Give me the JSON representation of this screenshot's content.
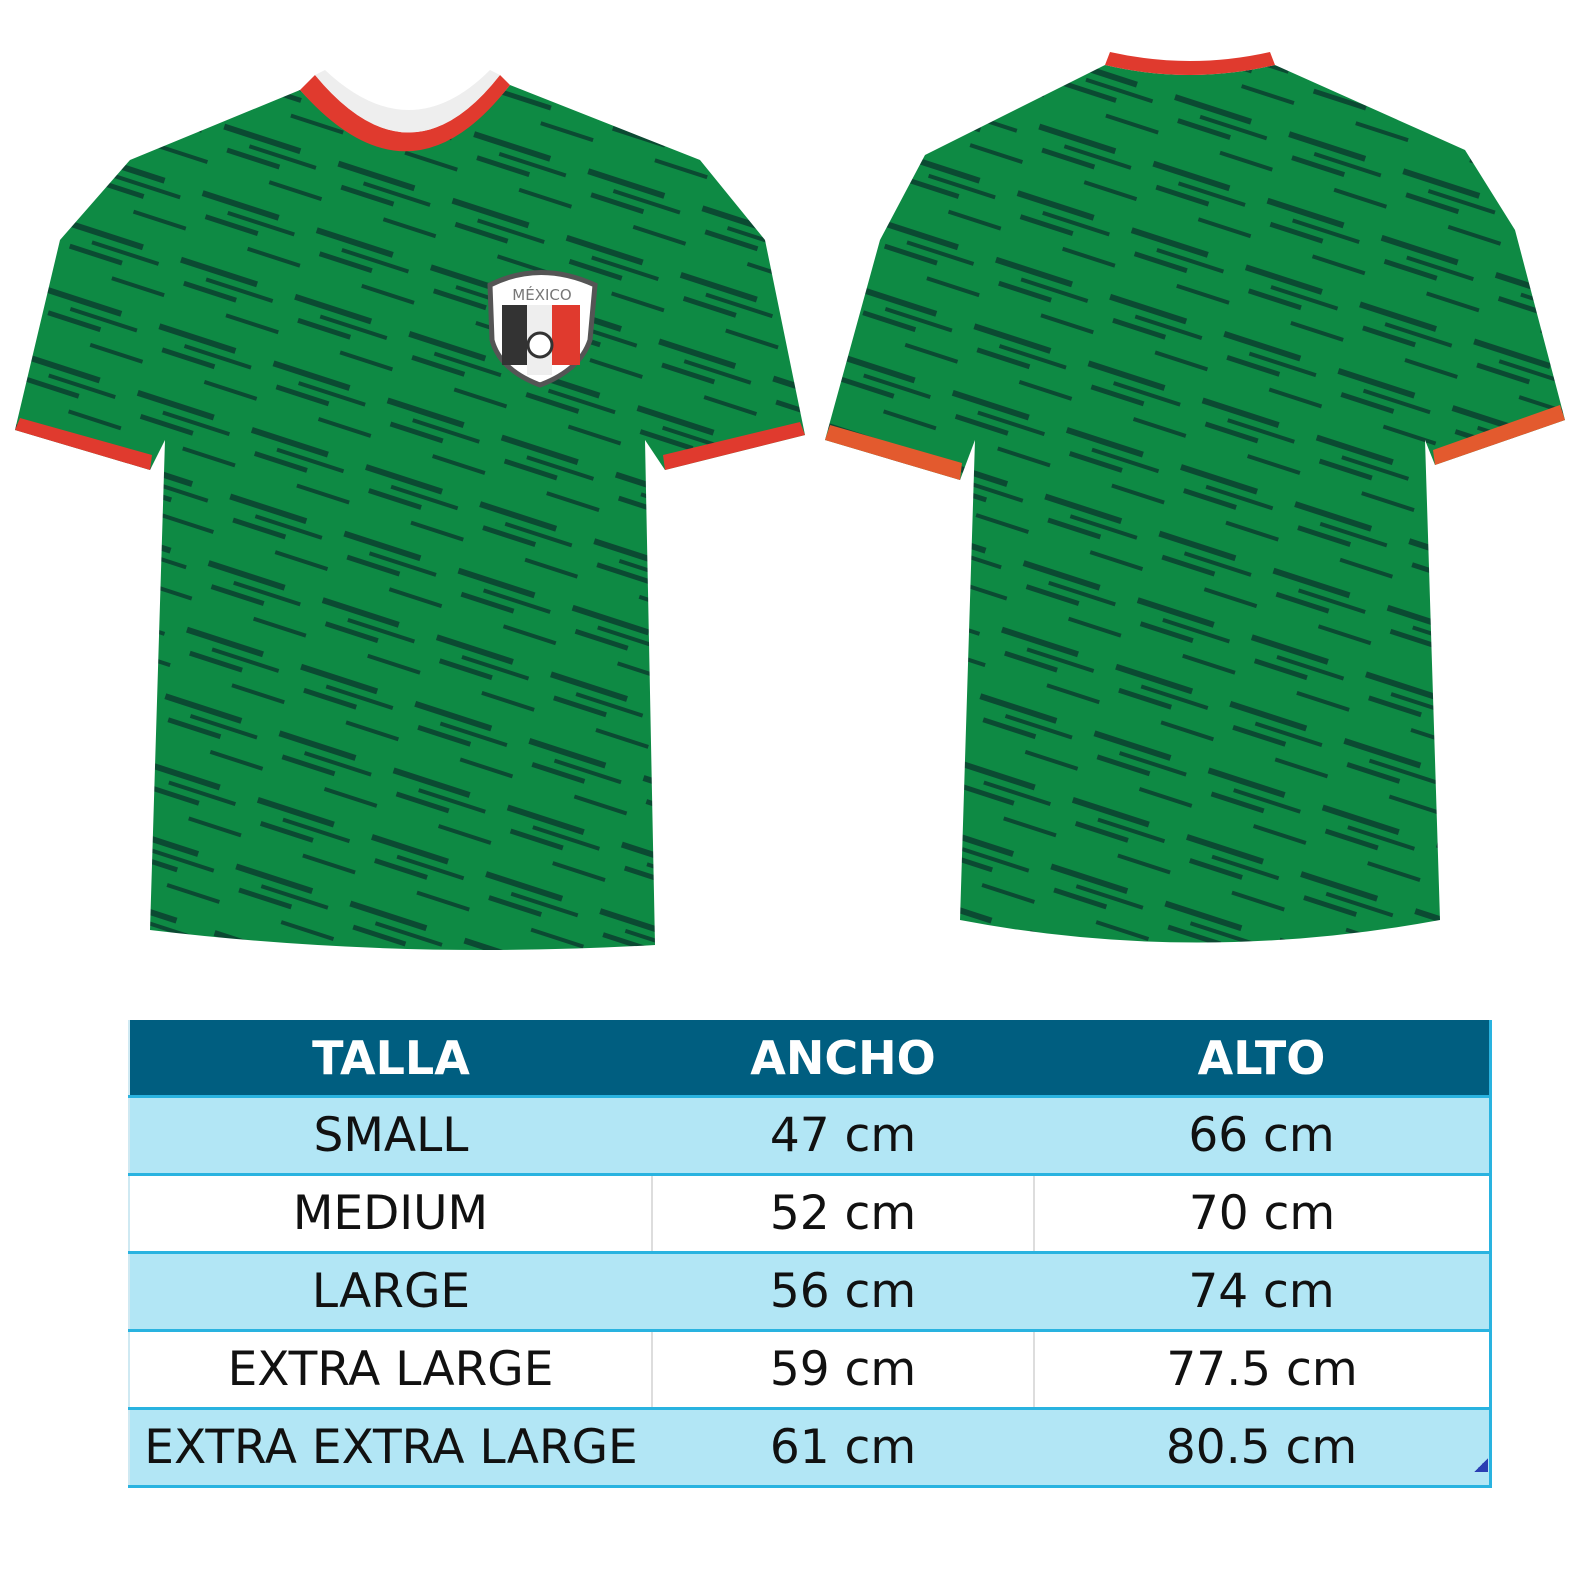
{
  "product": {
    "crest_text": "MÉXICO",
    "colors": {
      "jersey_green": "#0E8A44",
      "stripe_dark": "#0B4A32",
      "trim_red": "#E03A2E",
      "trim_white": "#FFFFFF"
    }
  },
  "size_table": {
    "headers": [
      "TALLA",
      "ANCHO",
      "ALTO"
    ],
    "rows": [
      {
        "talla": "SMALL",
        "ancho": "47 cm",
        "alto": "66 cm"
      },
      {
        "talla": "MEDIUM",
        "ancho": "52 cm",
        "alto": "70 cm"
      },
      {
        "talla": "LARGE",
        "ancho": "56 cm",
        "alto": "74 cm"
      },
      {
        "talla": "EXTRA LARGE",
        "ancho": "59 cm",
        "alto": "77.5 cm"
      },
      {
        "talla": "EXTRA EXTRA LARGE",
        "ancho": "61 cm",
        "alto": "80.5 cm"
      }
    ],
    "colors": {
      "header_bg": "#005E80",
      "row_light": "#B2E6F5",
      "border": "#29B3E0"
    }
  }
}
